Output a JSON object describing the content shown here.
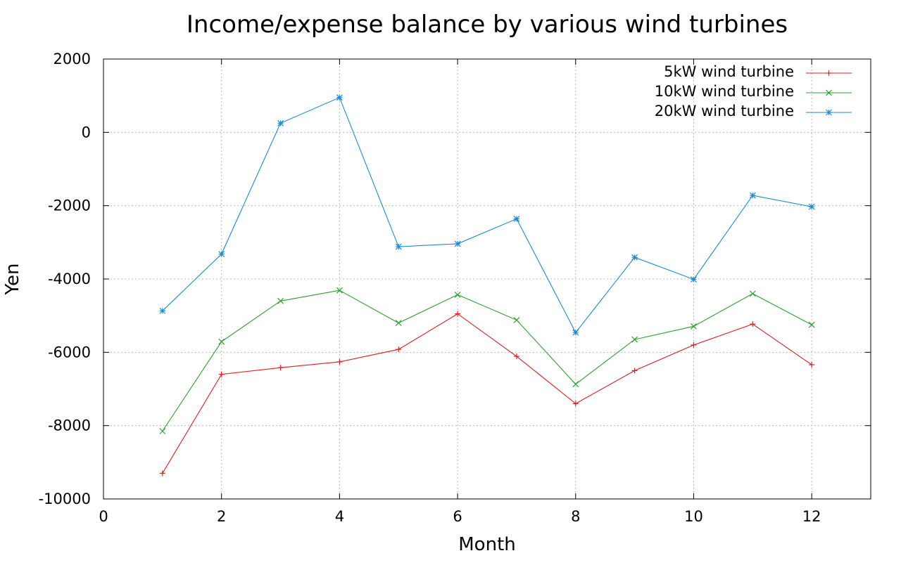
{
  "chart_data": {
    "type": "line",
    "title": "Income/expense balance by various wind turbines",
    "xlabel": "Month",
    "ylabel": "Yen",
    "xlim": [
      0,
      13
    ],
    "ylim": [
      -10000,
      2000
    ],
    "xticks": [
      0,
      2,
      4,
      6,
      8,
      10,
      12
    ],
    "yticks": [
      2000,
      0,
      -2000,
      -4000,
      -6000,
      -8000,
      -10000
    ],
    "grid": true,
    "legend_position": "top-right",
    "x": [
      1,
      2,
      3,
      4,
      5,
      6,
      7,
      8,
      9,
      10,
      11,
      12
    ],
    "series": [
      {
        "name": "5kW wind turbine",
        "color": "#e41a1c",
        "marker": "plus",
        "values": [
          -9300,
          -6600,
          -6420,
          -6260,
          -5920,
          -4950,
          -6110,
          -7400,
          -6500,
          -5800,
          -5230,
          -6340
        ]
      },
      {
        "name": "10kW wind turbine",
        "color": "#2ca02c",
        "marker": "cross",
        "values": [
          -8150,
          -5710,
          -4600,
          -4310,
          -5200,
          -4430,
          -5120,
          -6870,
          -5650,
          -5290,
          -4400,
          -5250
        ]
      },
      {
        "name": "20kW wind turbine",
        "color": "#1a8ad4",
        "marker": "asterisk",
        "values": [
          -4870,
          -3320,
          250,
          950,
          -3120,
          -3040,
          -2360,
          -5460,
          -3410,
          -4010,
          -1720,
          -2030
        ]
      }
    ]
  }
}
